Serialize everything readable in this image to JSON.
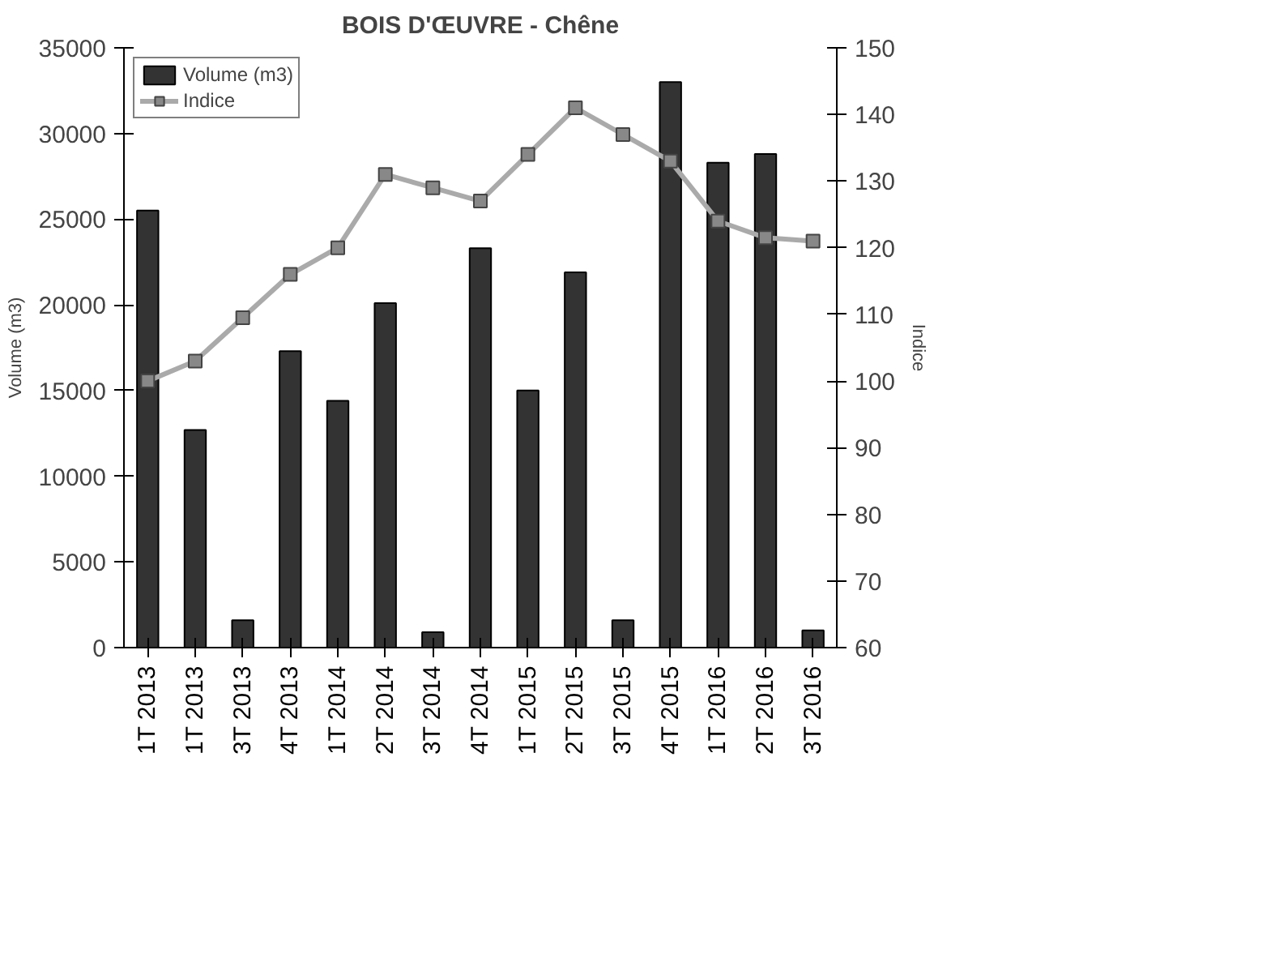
{
  "chart_data": {
    "type": "bar",
    "title": "BOIS D'ŒUVRE - Chêne",
    "ylabel": "Volume (m3)",
    "y2label": "Indice",
    "categories": [
      "1T 2013",
      "1T 2013",
      "3T 2013",
      "4T 2013",
      "1T 2014",
      "2T 2014",
      "3T 2014",
      "4T 2014",
      "1T 2015",
      "2T 2015",
      "3T 2015",
      "4T 2015",
      "1T 2016",
      "2T 2016",
      "3T 2016"
    ],
    "series": [
      {
        "name": "Volume (m3)",
        "color": "#333333",
        "values": [
          25500,
          12700,
          1600,
          17300,
          14400,
          20100,
          900,
          23300,
          15000,
          21900,
          1600,
          33000,
          28300,
          28800,
          1000
        ]
      },
      {
        "name": "Indice",
        "type": "line",
        "axis": "y2",
        "color": "#aaaaaa",
        "marker": "square",
        "values": [
          100,
          103,
          109.5,
          116,
          120,
          131,
          129,
          127,
          134,
          141,
          137,
          133,
          124,
          121.5,
          121
        ]
      }
    ],
    "ylim": [
      0,
      35000
    ],
    "yticks": [
      0,
      5000,
      10000,
      15000,
      20000,
      25000,
      30000,
      35000
    ],
    "y2lim": [
      60,
      150
    ],
    "y2ticks": [
      60,
      70,
      80,
      90,
      100,
      110,
      120,
      130,
      140,
      150
    ],
    "grid": false,
    "legend": "top left"
  }
}
